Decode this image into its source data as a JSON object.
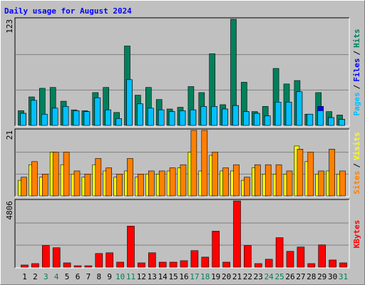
{
  "chart_data": [
    {
      "type": "bar",
      "title": "Daily usage for August 2024",
      "ylim": [
        0,
        123
      ],
      "yticks": [
        123
      ],
      "legend_separator": "/",
      "series": [
        {
          "name": "Hits",
          "color": "#00805C",
          "values": [
            17,
            33,
            43,
            44,
            28,
            18,
            17,
            38,
            44,
            15,
            92,
            35,
            44,
            30,
            19,
            21,
            45,
            38,
            83,
            24,
            123,
            50,
            16,
            22,
            66,
            48,
            52,
            13,
            38,
            16,
            12
          ]
        },
        {
          "name": "Files",
          "color": "#0000FF",
          "values": [
            14,
            29,
            13,
            20,
            22,
            17,
            16,
            32,
            18,
            8,
            53,
            25,
            20,
            18,
            16,
            17,
            18,
            22,
            22,
            19,
            23,
            16,
            14,
            11,
            27,
            27,
            39,
            13,
            22,
            9,
            7
          ]
        },
        {
          "name": "Pages",
          "color": "#00C0FF",
          "values": [
            14,
            29,
            13,
            20,
            22,
            17,
            16,
            32,
            18,
            8,
            53,
            25,
            20,
            18,
            16,
            17,
            18,
            22,
            22,
            19,
            23,
            16,
            14,
            11,
            27,
            27,
            39,
            13,
            17,
            9,
            7
          ]
        }
      ]
    },
    {
      "type": "bar",
      "ylim": [
        0,
        21
      ],
      "yticks": [
        21
      ],
      "legend_separator": "/",
      "series": [
        {
          "name": "Visits",
          "color": "#FFFF00",
          "values": [
            5,
            10,
            6,
            14,
            10,
            7,
            6,
            10,
            8,
            6,
            8,
            6,
            7,
            7,
            8,
            9,
            14,
            8,
            13,
            8,
            8,
            5,
            9,
            7,
            7,
            7,
            16,
            11,
            7,
            8,
            7
          ]
        },
        {
          "name": "Sites",
          "color": "#FF8000",
          "values": [
            6,
            11,
            7,
            14,
            14,
            8,
            7,
            12,
            9,
            7,
            12,
            7,
            8,
            8,
            9,
            10,
            21,
            21,
            14,
            9,
            10,
            6,
            10,
            10,
            10,
            8,
            15,
            14,
            8,
            15,
            8
          ]
        }
      ]
    },
    {
      "type": "bar",
      "ylim": [
        0,
        4806
      ],
      "yticks": [
        4806
      ],
      "categories": [
        "1",
        "2",
        "3",
        "4",
        "5",
        "6",
        "7",
        "8",
        "9",
        "10",
        "11",
        "12",
        "13",
        "14",
        "15",
        "16",
        "17",
        "18",
        "19",
        "20",
        "21",
        "22",
        "23",
        "24",
        "25",
        "26",
        "27",
        "28",
        "29",
        "30",
        "31"
      ],
      "highlight_categories": [
        "3",
        "4",
        "10",
        "11",
        "17",
        "18",
        "24",
        "25",
        "31"
      ],
      "highlight_color": "#00805C",
      "series": [
        {
          "name": "KBytes",
          "color": "#FF0000",
          "values": [
            157,
            261,
            1567,
            1410,
            313,
            104,
            104,
            992,
            1044,
            365,
            2978,
            313,
            1044,
            365,
            365,
            470,
            1201,
            731,
            2612,
            365,
            4806,
            1567,
            261,
            574,
            2141,
            1149,
            1462,
            261,
            1619,
            522,
            313
          ]
        }
      ]
    }
  ]
}
